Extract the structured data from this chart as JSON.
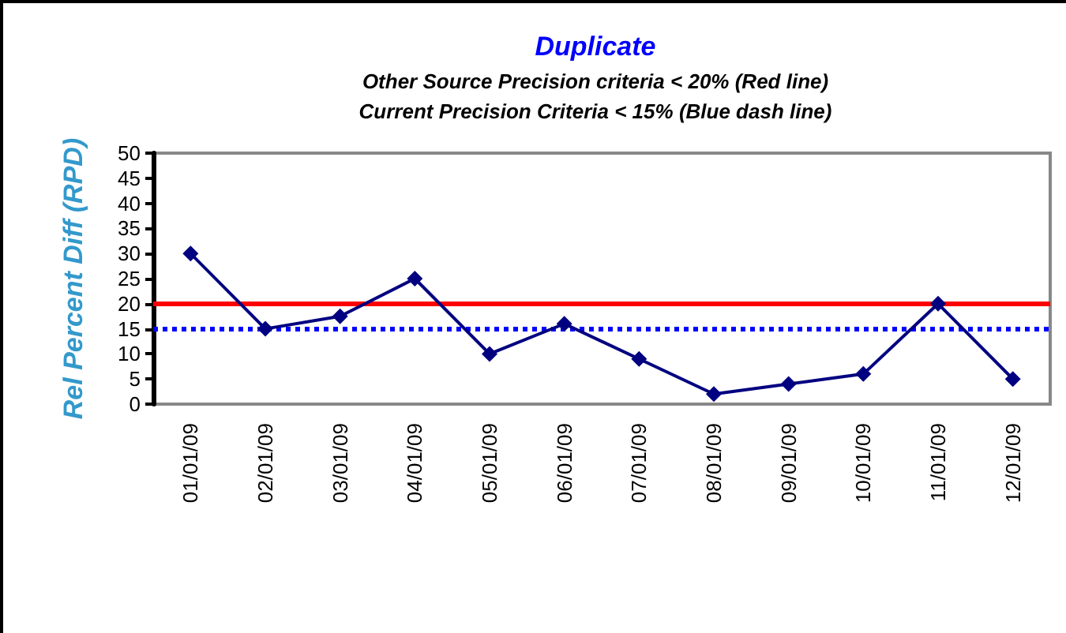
{
  "chart_data": {
    "type": "line",
    "title": "Duplicate",
    "subtitle": "Other Source Precision criteria < 20% (Red line)\nCurrent Precision Criteria < 15% (Blue dash line)",
    "ylabel": "Rel Percent Diff (RPD)",
    "categories": [
      "01/01/09",
      "02/01/09",
      "03/01/09",
      "04/01/09",
      "05/01/09",
      "06/01/09",
      "07/01/09",
      "08/01/09",
      "09/01/09",
      "10/01/09",
      "11/01/09",
      "12/01/09"
    ],
    "series": [
      {
        "color": "#000080",
        "values": [
          30,
          15,
          17.5,
          25,
          10,
          16,
          9,
          2,
          4,
          6,
          20,
          5
        ]
      }
    ],
    "ylim": [
      0,
      50
    ],
    "yticks": [
      0,
      5,
      10,
      15,
      20,
      25,
      30,
      35,
      40,
      45,
      50
    ],
    "grid": false,
    "marker": "diamond",
    "line_style": "solid",
    "ref_lines": [
      {
        "axis": "y",
        "value": 20,
        "color": "#ff0000",
        "line_style": "solid"
      },
      {
        "axis": "y",
        "value": 15,
        "color": "#0000ff",
        "line_style": "dotted"
      }
    ]
  }
}
